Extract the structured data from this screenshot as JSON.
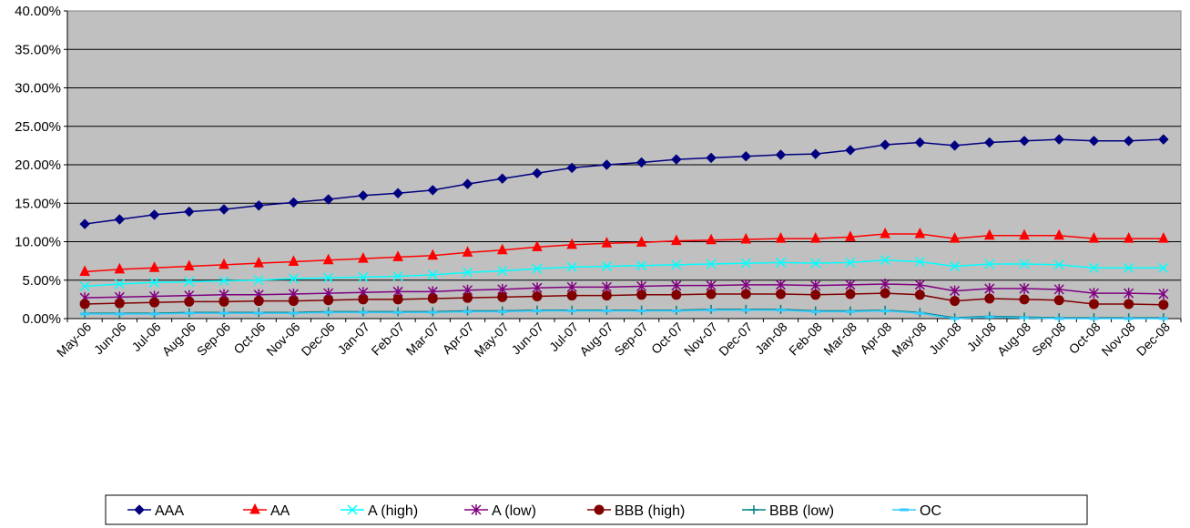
{
  "chart_data": {
    "type": "line",
    "title": "",
    "xlabel": "",
    "ylabel": "",
    "ylim": [
      0,
      0.4
    ],
    "yticks": [
      "0.00%",
      "5.00%",
      "10.00%",
      "15.00%",
      "20.00%",
      "25.00%",
      "30.00%",
      "35.00%",
      "40.00%"
    ],
    "grid": true,
    "legend_position": "bottom",
    "plot_background": "#c0c0c0",
    "categories": [
      "May-06",
      "Jun-06",
      "Jul-06",
      "Aug-06",
      "Sep-06",
      "Oct-06",
      "Nov-06",
      "Dec-06",
      "Jan-07",
      "Feb-07",
      "Mar-07",
      "Apr-07",
      "May-07",
      "Jun-07",
      "Jul-07",
      "Aug-07",
      "Sep-07",
      "Oct-07",
      "Nov-07",
      "Dec-07",
      "Jan-08",
      "Feb-08",
      "Mar-08",
      "Apr-08",
      "May-08",
      "Jun-08",
      "Jul-08",
      "Aug-08",
      "Sep-08",
      "Oct-08",
      "Nov-08",
      "Dec-08"
    ],
    "series": [
      {
        "name": "AAA",
        "color": "#000080",
        "marker": "diamond",
        "values": [
          0.123,
          0.129,
          0.135,
          0.139,
          0.142,
          0.147,
          0.151,
          0.155,
          0.16,
          0.163,
          0.167,
          0.175,
          0.182,
          0.189,
          0.196,
          0.2,
          0.203,
          0.207,
          0.209,
          0.211,
          0.213,
          0.214,
          0.219,
          0.226,
          0.229,
          0.225,
          0.229,
          0.231,
          0.233,
          0.231,
          0.231,
          0.233
        ]
      },
      {
        "name": "AA",
        "color": "#ff0000",
        "marker": "triangle",
        "values": [
          0.061,
          0.064,
          0.066,
          0.068,
          0.07,
          0.072,
          0.074,
          0.076,
          0.078,
          0.08,
          0.082,
          0.086,
          0.089,
          0.093,
          0.096,
          0.098,
          0.099,
          0.101,
          0.102,
          0.103,
          0.104,
          0.104,
          0.106,
          0.11,
          0.11,
          0.104,
          0.108,
          0.108,
          0.108,
          0.104,
          0.104,
          0.104
        ]
      },
      {
        "name": "A (high)",
        "color": "#00ffff",
        "marker": "x",
        "values": [
          0.042,
          0.045,
          0.047,
          0.048,
          0.049,
          0.05,
          0.052,
          0.053,
          0.054,
          0.055,
          0.057,
          0.06,
          0.062,
          0.065,
          0.067,
          0.068,
          0.069,
          0.07,
          0.071,
          0.072,
          0.073,
          0.072,
          0.073,
          0.076,
          0.074,
          0.068,
          0.071,
          0.071,
          0.07,
          0.066,
          0.066,
          0.066
        ]
      },
      {
        "name": "A (low)",
        "color": "#800080",
        "marker": "star",
        "values": [
          0.027,
          0.028,
          0.029,
          0.03,
          0.031,
          0.031,
          0.032,
          0.033,
          0.034,
          0.035,
          0.035,
          0.037,
          0.038,
          0.04,
          0.041,
          0.041,
          0.042,
          0.043,
          0.043,
          0.044,
          0.044,
          0.043,
          0.044,
          0.045,
          0.044,
          0.036,
          0.039,
          0.039,
          0.038,
          0.033,
          0.033,
          0.032
        ]
      },
      {
        "name": "BBB (high)",
        "color": "#800000",
        "marker": "circle",
        "values": [
          0.019,
          0.02,
          0.021,
          0.022,
          0.022,
          0.023,
          0.023,
          0.024,
          0.025,
          0.025,
          0.026,
          0.027,
          0.028,
          0.029,
          0.03,
          0.03,
          0.031,
          0.031,
          0.032,
          0.032,
          0.032,
          0.031,
          0.032,
          0.033,
          0.031,
          0.023,
          0.026,
          0.025,
          0.024,
          0.019,
          0.019,
          0.018
        ]
      },
      {
        "name": "BBB (low)",
        "color": "#008080",
        "marker": "plus",
        "values": [
          0.007,
          0.007,
          0.007,
          0.008,
          0.008,
          0.008,
          0.008,
          0.009,
          0.009,
          0.009,
          0.009,
          0.01,
          0.01,
          0.011,
          0.011,
          0.011,
          0.011,
          0.011,
          0.012,
          0.012,
          0.012,
          0.01,
          0.01,
          0.011,
          0.008,
          0.001,
          0.003,
          0.002,
          0.001,
          0.001,
          0.001,
          0.001
        ]
      },
      {
        "name": "OC",
        "color": "#33ccff",
        "marker": "dash",
        "values": [
          0.006,
          0.006,
          0.006,
          0.007,
          0.007,
          0.007,
          0.007,
          0.008,
          0.008,
          0.008,
          0.008,
          0.009,
          0.009,
          0.01,
          0.01,
          0.01,
          0.01,
          0.01,
          0.011,
          0.011,
          0.011,
          0.009,
          0.009,
          0.01,
          0.007,
          0.0,
          0.002,
          0.001,
          0.0,
          0.0,
          0.0,
          0.0
        ]
      }
    ]
  }
}
